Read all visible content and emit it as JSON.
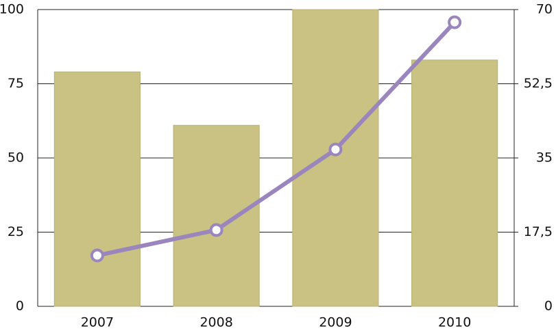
{
  "chart_data": {
    "type": "bar-line",
    "categories": [
      "2007",
      "2008",
      "2009",
      "2010"
    ],
    "series": [
      {
        "type": "bar",
        "color": "#c9c283",
        "values": [
          79,
          61,
          100,
          83
        ]
      },
      {
        "type": "line",
        "color": "#9a85bd",
        "axis": "y2",
        "values": [
          12,
          18,
          37,
          67
        ]
      }
    ],
    "ylim": [
      0,
      100
    ],
    "yticks": [
      0,
      25,
      50,
      75,
      100
    ],
    "y2lim": [
      0,
      70
    ],
    "y2ticks": [
      0,
      {
        "value": 17.5,
        "label": "17,5"
      },
      35,
      {
        "value": 52.5,
        "label": "52,5"
      },
      70
    ],
    "grid": true
  }
}
